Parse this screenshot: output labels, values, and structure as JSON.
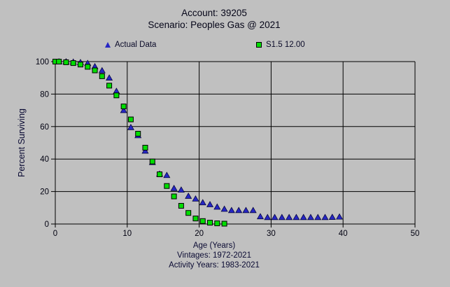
{
  "window": {
    "background": "#c0c0c0"
  },
  "header": {
    "title_line1": "Account: 39205",
    "title_line2": "Scenario: Peoples Gas @ 2021"
  },
  "legend": [
    {
      "label": "Actual Data",
      "marker": "triangle",
      "color": "#2626c4"
    },
    {
      "label": "S1.5 12.00",
      "marker": "square",
      "color": "#00dd00"
    }
  ],
  "footer": {
    "xlabel": "Age (Years)",
    "vintages": "Vintages: 1972-2021",
    "activity_years": "Activity Years: 1983-2021"
  },
  "chart_data": {
    "type": "scatter",
    "title": "Account: 39205 — Scenario: Peoples Gas @ 2021",
    "xlabel": "Age (Years)",
    "ylabel": "Percent Surviving",
    "xlim": [
      0,
      50
    ],
    "ylim": [
      0,
      100
    ],
    "x_ticks": [
      0,
      10,
      20,
      30,
      40,
      50
    ],
    "y_ticks": [
      0,
      20,
      40,
      60,
      80,
      100
    ],
    "grid": true,
    "legend_position": "top",
    "axis_color": "#000000",
    "series": [
      {
        "name": "Actual Data",
        "marker": "triangle",
        "color": "#2626c4",
        "points": [
          [
            0.5,
            100
          ],
          [
            1.5,
            100
          ],
          [
            2.5,
            99.8
          ],
          [
            3.5,
            99.5
          ],
          [
            4.5,
            99
          ],
          [
            5.5,
            97
          ],
          [
            6.5,
            94.5
          ],
          [
            7.5,
            90
          ],
          [
            8.5,
            81.8
          ],
          [
            9.5,
            70
          ],
          [
            10.5,
            59.5
          ],
          [
            11.5,
            54.5
          ],
          [
            12.5,
            45
          ],
          [
            13.5,
            38
          ],
          [
            14.5,
            30.8
          ],
          [
            15.5,
            30
          ],
          [
            16.5,
            22
          ],
          [
            17.5,
            21
          ],
          [
            18.5,
            17.2
          ],
          [
            19.5,
            15.5
          ],
          [
            20.5,
            13.2
          ],
          [
            21.5,
            12
          ],
          [
            22.5,
            10.5
          ],
          [
            23.5,
            9.2
          ],
          [
            24.5,
            8.4
          ],
          [
            25.5,
            8.4
          ],
          [
            26.5,
            8.4
          ],
          [
            27.5,
            8.4
          ],
          [
            28.5,
            4.6
          ],
          [
            29.5,
            4.1
          ],
          [
            30.5,
            4.1
          ],
          [
            31.5,
            4.1
          ],
          [
            32.5,
            4.1
          ],
          [
            33.5,
            4.1
          ],
          [
            34.5,
            4.1
          ],
          [
            35.5,
            4.1
          ],
          [
            36.5,
            4.1
          ],
          [
            37.5,
            4.1
          ],
          [
            38.5,
            4.2
          ],
          [
            39.5,
            4.4
          ]
        ]
      },
      {
        "name": "S1.5 12.00",
        "marker": "square",
        "color": "#00dd00",
        "points": [
          [
            0,
            100
          ],
          [
            0.5,
            100
          ],
          [
            1.5,
            99.6
          ],
          [
            2.5,
            99.1
          ],
          [
            3.5,
            98.2
          ],
          [
            4.5,
            96.8
          ],
          [
            5.5,
            94.6
          ],
          [
            6.5,
            91
          ],
          [
            7.5,
            85.2
          ],
          [
            8.5,
            79.2
          ],
          [
            9.5,
            72.4
          ],
          [
            10.5,
            64.4
          ],
          [
            11.5,
            55.6
          ],
          [
            12.5,
            47
          ],
          [
            13.5,
            38.5
          ],
          [
            14.5,
            30.6
          ],
          [
            15.5,
            23.4
          ],
          [
            16.5,
            17
          ],
          [
            17.5,
            11.2
          ],
          [
            18.5,
            6.8
          ],
          [
            19.5,
            3.4
          ],
          [
            20.5,
            1.8
          ],
          [
            21.5,
            0.8
          ],
          [
            22.5,
            0.4
          ],
          [
            23.5,
            0.2
          ]
        ]
      }
    ]
  }
}
